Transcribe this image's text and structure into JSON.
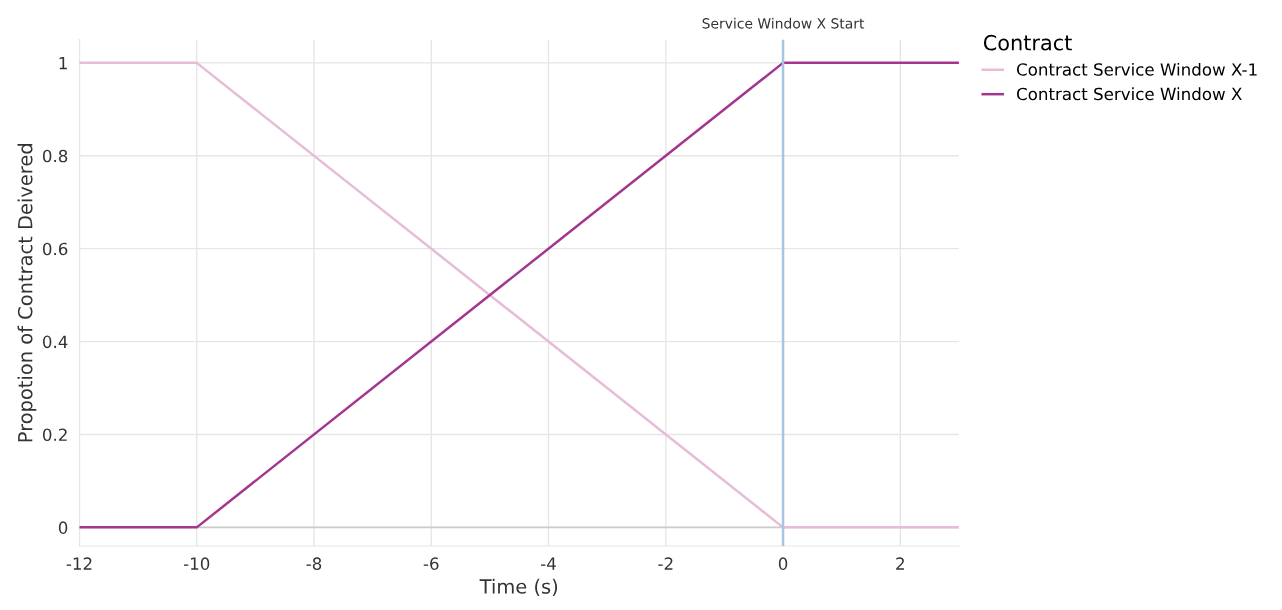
{
  "chart_data": {
    "type": "line",
    "xlabel": "Time (s)",
    "ylabel": "Propotion of Contract Deivered",
    "legend_title": "Contract",
    "series": [
      {
        "name": "Contract Service Window X-1",
        "color": "#e6bcd9",
        "x": [
          -12,
          -10,
          0,
          3
        ],
        "values": [
          1,
          1,
          0,
          0
        ]
      },
      {
        "name": "Contract Service Window X",
        "color": "#a3378f",
        "x": [
          -12,
          -10,
          0,
          3
        ],
        "values": [
          0,
          0,
          1,
          1
        ]
      }
    ],
    "xlim": [
      -12,
      3
    ],
    "xticks": [
      -12,
      -10,
      -8,
      -6,
      -4,
      -2,
      0,
      2
    ],
    "ylim": [
      -0.04,
      1.05
    ],
    "yticks": [
      0,
      0.2,
      0.4,
      0.6,
      0.8,
      1
    ],
    "ref_lines": [
      {
        "axis": "x",
        "value": 0,
        "label": "Service Window X Start",
        "color": "#a7c5e3"
      }
    ],
    "grid": true,
    "legend": "top right",
    "marker": "none",
    "line_style": "solid"
  }
}
